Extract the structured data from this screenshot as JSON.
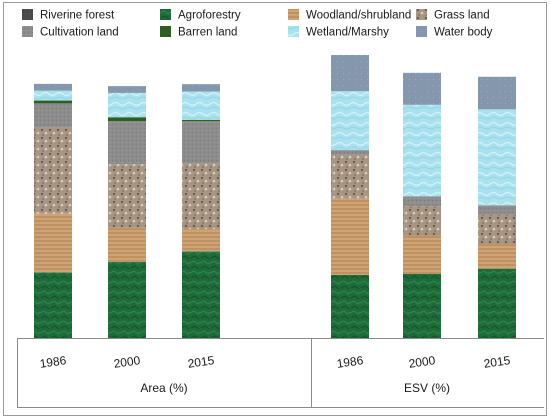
{
  "chart_data": {
    "type": "bar",
    "stacked": true,
    "y_unit": "percent",
    "ylim": [
      0,
      100
    ],
    "grid": false,
    "legend": "top",
    "groups": [
      {
        "label": "Area (%)",
        "categories": [
          "1986",
          "2000",
          "2015"
        ]
      },
      {
        "label": "ESV (%)",
        "categories": [
          "1986",
          "2000",
          "2015"
        ]
      }
    ],
    "categories": [
      "1986",
      "2000",
      "2015",
      "1986",
      "2000",
      "2015"
    ],
    "series": [
      {
        "name": "Agroforestry",
        "color": "#1f6b3a",
        "values": [
          23.2,
          26.9,
          30.6,
          22.3,
          22.7,
          24.5
        ]
      },
      {
        "name": "Woodland/shrubland",
        "color": "#c79a6a",
        "values": [
          20.7,
          12.1,
          7.9,
          26.9,
          13.5,
          8.7
        ]
      },
      {
        "name": "Grass land",
        "color": "#a89684",
        "values": [
          30.4,
          22.4,
          23.2,
          15.5,
          10.4,
          10.4
        ]
      },
      {
        "name": "Cultivation land",
        "color": "#8c8c8c",
        "values": [
          8.6,
          15.2,
          14.9,
          1.7,
          3.4,
          3.3
        ]
      },
      {
        "name": "Barren land",
        "color": "#2d5e22",
        "values": [
          1.0,
          1.4,
          0.5,
          0.0,
          0.0,
          0.0
        ]
      },
      {
        "name": "Wetland/Marshy",
        "color": "#a9e2ee",
        "values": [
          3.5,
          8.6,
          10.0,
          20.8,
          32.4,
          33.9
        ]
      },
      {
        "name": "Water body",
        "color": "#8597ad",
        "values": [
          2.4,
          2.4,
          2.6,
          12.8,
          11.3,
          11.5
        ]
      },
      {
        "name": "Riverine forest",
        "color": "#4a4a4a",
        "values": [
          0,
          0,
          0,
          0,
          0,
          0
        ]
      }
    ],
    "legend_order": [
      "Riverine forest",
      "Agroforestry",
      "Woodland/shrubland",
      "Grass land",
      "Cultivation land",
      "Barren land",
      "Wetland/Marshy",
      "Water body"
    ]
  }
}
